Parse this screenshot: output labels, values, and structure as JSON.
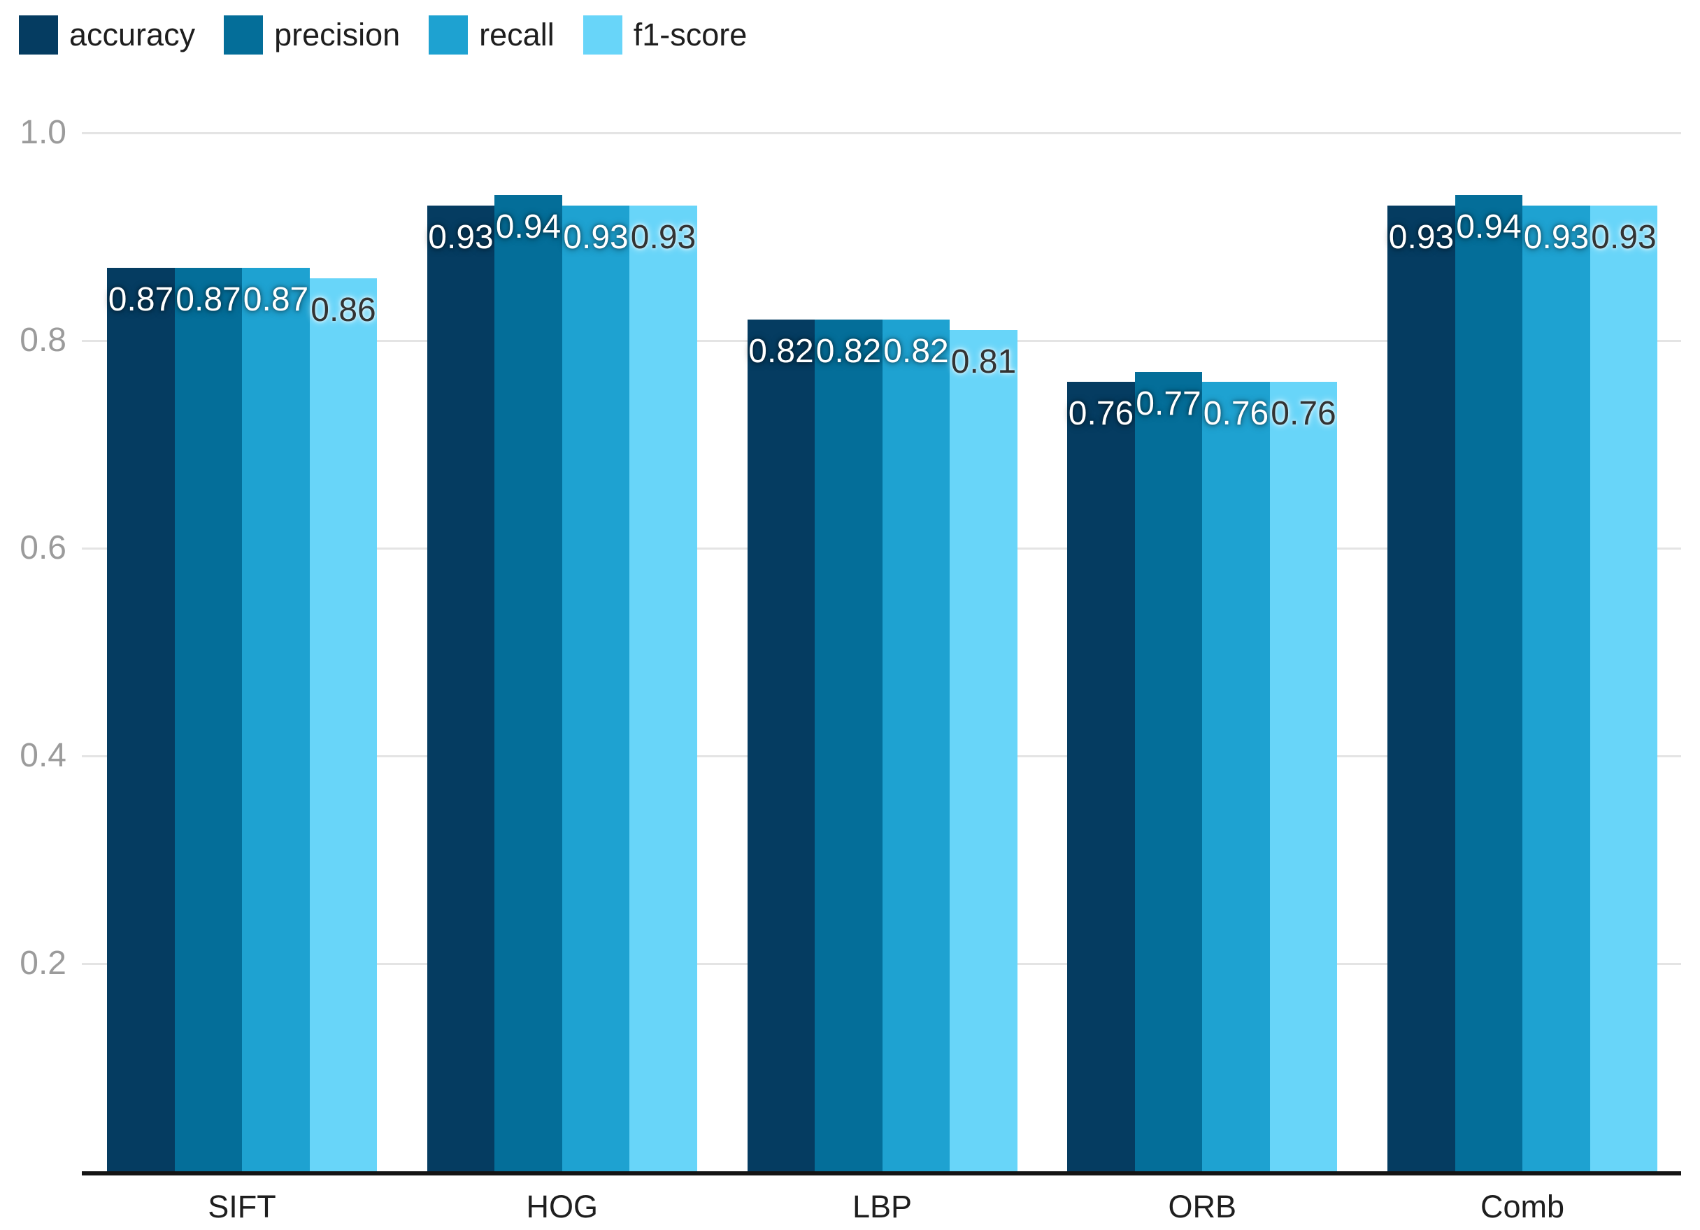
{
  "chart_data": {
    "type": "bar",
    "title": "",
    "xlabel": "",
    "ylabel": "",
    "categories": [
      "SIFT",
      "HOG",
      "LBP",
      "ORB",
      "Comb"
    ],
    "series": [
      {
        "name": "accuracy",
        "color": "#053c61",
        "label_color": "light",
        "values": [
          0.87,
          0.93,
          0.82,
          0.76,
          0.93
        ]
      },
      {
        "name": "precision",
        "color": "#046e99",
        "label_color": "light",
        "values": [
          0.87,
          0.94,
          0.82,
          0.77,
          0.94
        ]
      },
      {
        "name": "recall",
        "color": "#1ea2d1",
        "label_color": "light",
        "values": [
          0.87,
          0.93,
          0.82,
          0.76,
          0.93
        ]
      },
      {
        "name": "f1-score",
        "color": "#68d5f9",
        "label_color": "dark",
        "values": [
          0.86,
          0.93,
          0.81,
          0.76,
          0.93
        ]
      }
    ],
    "value_label_decimals": 2,
    "yticks": [
      {
        "label": "0.2",
        "value": 0.2
      },
      {
        "label": "0.4",
        "value": 0.4
      },
      {
        "label": "0.6",
        "value": 0.6
      },
      {
        "label": "0.8",
        "value": 0.8
      },
      {
        "label": "1.0",
        "value": 1.0
      }
    ],
    "ylim": [
      0,
      1.0
    ],
    "grid": true,
    "legend_position": "top-left",
    "colors": {
      "grid_line": "#e4e4e4",
      "tick_label": "#9b9b9b",
      "axis_line": "#141414",
      "category_label": "#1e1e1e",
      "legend_label": "#1e1e1e",
      "background": "#ffffff"
    }
  }
}
